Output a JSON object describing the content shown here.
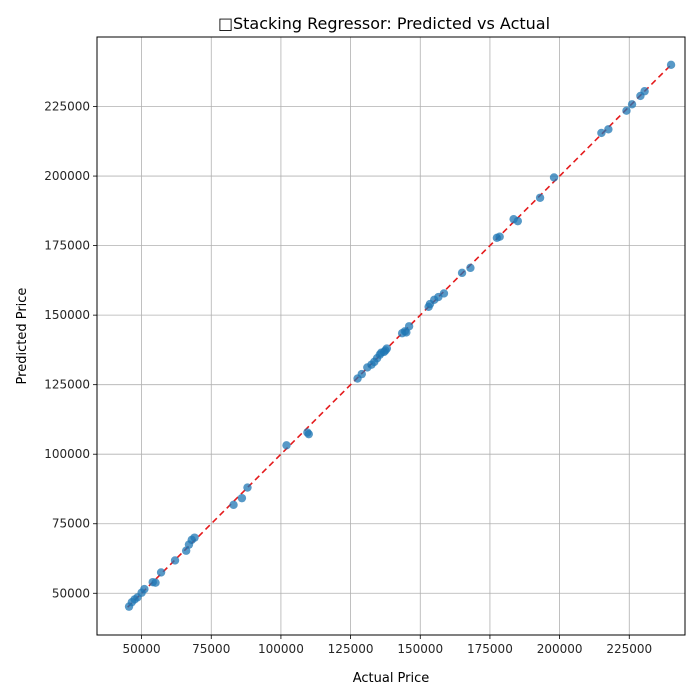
{
  "chart_data": {
    "type": "scatter",
    "title": "📈 Stacking Regressor: Predicted vs Actual",
    "title_glyph": "□",
    "title_text": "Stacking Regressor: Predicted vs Actual",
    "xlabel": "Actual Price",
    "ylabel": "Predicted Price",
    "xlim": [
      34000,
      245000
    ],
    "ylim": [
      35000,
      250000
    ],
    "xticks": [
      50000,
      75000,
      100000,
      125000,
      150000,
      175000,
      200000,
      225000
    ],
    "yticks": [
      50000,
      75000,
      100000,
      125000,
      150000,
      175000,
      200000,
      225000
    ],
    "grid": true,
    "reference_line": {
      "style": "dashed",
      "color": "#e41a1c",
      "from": 45000,
      "to": 240000
    },
    "point_color": "#1f77b4",
    "points": [
      [
        45500,
        45200
      ],
      [
        46500,
        46800
      ],
      [
        47500,
        47800
      ],
      [
        48500,
        48500
      ],
      [
        50000,
        50200
      ],
      [
        51000,
        51500
      ],
      [
        54000,
        54000
      ],
      [
        55000,
        53800
      ],
      [
        57000,
        57500
      ],
      [
        62000,
        61800
      ],
      [
        66000,
        65300
      ],
      [
        67000,
        67500
      ],
      [
        68000,
        69200
      ],
      [
        69000,
        70000
      ],
      [
        83000,
        81800
      ],
      [
        86000,
        84200
      ],
      [
        88000,
        88000
      ],
      [
        102000,
        103200
      ],
      [
        109500,
        107800
      ],
      [
        110000,
        107200
      ],
      [
        127500,
        127200
      ],
      [
        129000,
        128800
      ],
      [
        131000,
        131200
      ],
      [
        132500,
        132200
      ],
      [
        133500,
        133200
      ],
      [
        134500,
        134500
      ],
      [
        135500,
        135800
      ],
      [
        136000,
        136500
      ],
      [
        137000,
        136800
      ],
      [
        137500,
        137300
      ],
      [
        138000,
        138000
      ],
      [
        143500,
        143500
      ],
      [
        144500,
        144200
      ],
      [
        145000,
        143800
      ],
      [
        146000,
        146000
      ],
      [
        153000,
        153000
      ],
      [
        153500,
        154000
      ],
      [
        155000,
        155500
      ],
      [
        156500,
        156500
      ],
      [
        158500,
        157800
      ],
      [
        165000,
        165200
      ],
      [
        168000,
        167000
      ],
      [
        177500,
        177800
      ],
      [
        178500,
        178200
      ],
      [
        183500,
        184500
      ],
      [
        185000,
        183800
      ],
      [
        193000,
        192200
      ],
      [
        198000,
        199500
      ],
      [
        215000,
        215500
      ],
      [
        217500,
        216800
      ],
      [
        224000,
        223500
      ],
      [
        226000,
        225800
      ],
      [
        229000,
        228800
      ],
      [
        230500,
        230500
      ],
      [
        240000,
        240000
      ]
    ]
  }
}
